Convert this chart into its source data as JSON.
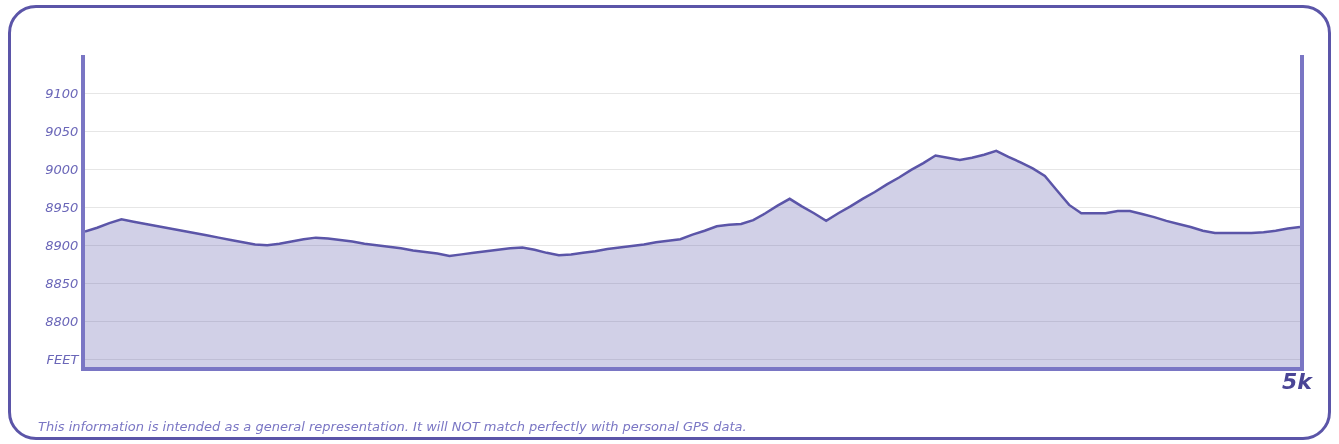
{
  "chart_data": {
    "type": "area",
    "categories": [
      null,
      null,
      null,
      null,
      null,
      null,
      null,
      null,
      null,
      null,
      null,
      null,
      null,
      null,
      null,
      null,
      null,
      null,
      null,
      null,
      null,
      null,
      null,
      null,
      null,
      null,
      null,
      null,
      null,
      null,
      null,
      null,
      null,
      null,
      null,
      null,
      null,
      null,
      null,
      null,
      null,
      null,
      null,
      null,
      null,
      null,
      null,
      null,
      null,
      null,
      null,
      null,
      null,
      null,
      null,
      null,
      null,
      null,
      null,
      null,
      null,
      null,
      null,
      null,
      null,
      null,
      null,
      null,
      null,
      null,
      null,
      null,
      null,
      null,
      null,
      null,
      null,
      null,
      null,
      null,
      null,
      null,
      null,
      null,
      null,
      null,
      null,
      null,
      null,
      null,
      null,
      null,
      null,
      null,
      null,
      null,
      null,
      null,
      null,
      null,
      null
    ],
    "series": [
      {
        "color": "#5b55a8",
        "values": [
          8918,
          8923,
          8929,
          8934,
          8931,
          8928,
          8925,
          8922,
          8919,
          8916,
          8913,
          8910,
          8907,
          8904,
          8901,
          8900,
          8902,
          8905,
          8908,
          8910,
          8909,
          8907,
          8905,
          8902,
          8900,
          8898,
          8896,
          8893,
          8891,
          8889,
          8886,
          8888,
          8890,
          8892,
          8894,
          8896,
          8897,
          8894,
          8890,
          8887,
          8888,
          8890,
          8892,
          8895,
          8897,
          8899,
          8901,
          8904,
          8906,
          8908,
          8914,
          8919,
          8925,
          8927,
          8928,
          8933,
          8942,
          8952,
          8961,
          8951,
          8942,
          8932,
          8942,
          8951,
          8961,
          8970,
          8980,
          8989,
          8999,
          9008,
          9018,
          9015,
          9012,
          9015,
          9019,
          9024,
          9016,
          9009,
          9001,
          8991,
          8972,
          8953,
          8942,
          8942,
          8942,
          8945,
          8945,
          8941,
          8937,
          8932,
          8928,
          8924,
          8919,
          8916,
          8916,
          8916,
          8916,
          8917,
          8919,
          8922,
          8924
        ]
      }
    ],
    "xlabel": "5k",
    "ylim": [
      8740,
      9150
    ],
    "yticks": [
      {
        "value": 8750,
        "label": "FEET"
      },
      8800,
      8850,
      8900,
      8950,
      9000,
      9050,
      9100
    ],
    "grid": "y",
    "annotations": [
      "This information is intended as a general representation. It will NOT match perfectly with personal GPS data."
    ]
  }
}
